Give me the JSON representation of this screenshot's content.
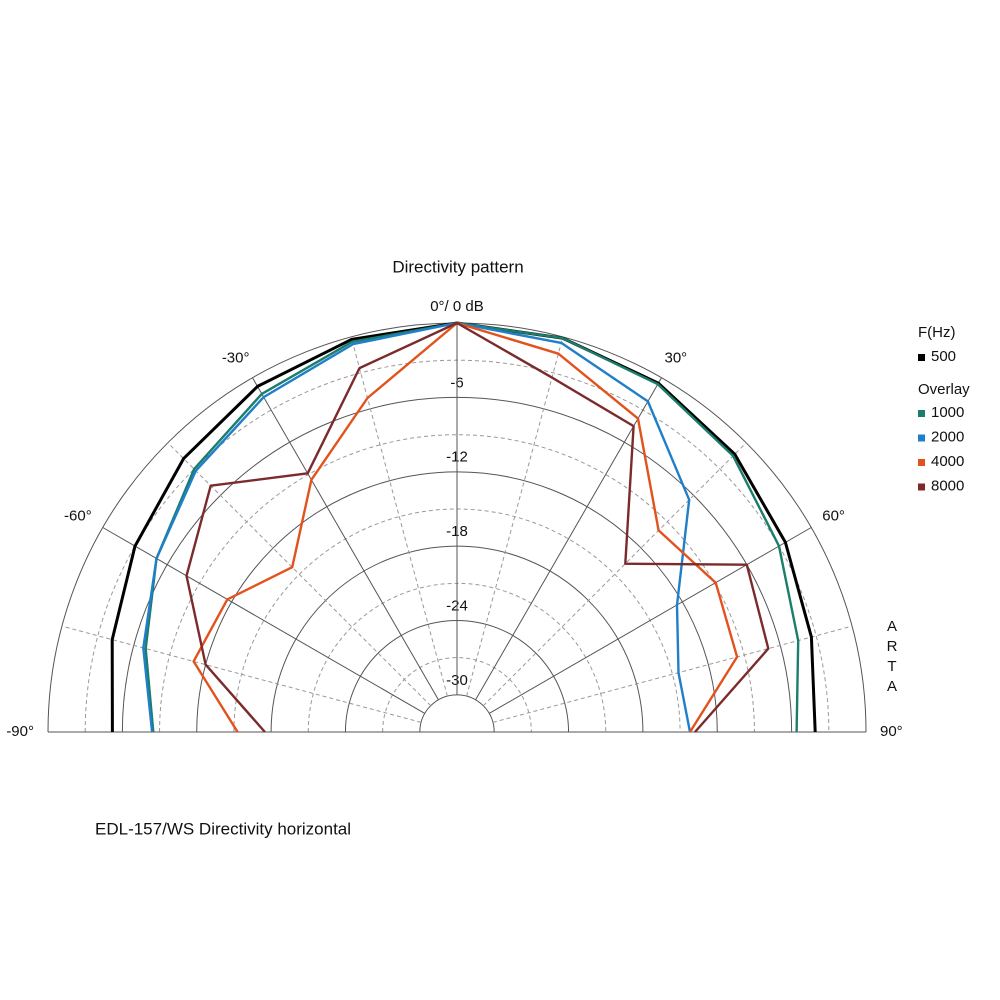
{
  "chart_data": {
    "type": "polar",
    "title": "Directivity pattern",
    "footnote": "EDL-157/WS  Directivity horizontal",
    "watermark": "ARTA",
    "legend_title": "F(Hz)",
    "overlay_title": "Overlay",
    "theta": [
      -90,
      -75,
      -60,
      -45,
      -30,
      -15,
      0,
      15,
      30,
      45,
      60,
      75,
      90
    ],
    "thetaticks": [
      {
        "value": -90,
        "label": "-90°"
      },
      {
        "value": -60,
        "label": "-60°"
      },
      {
        "value": -30,
        "label": "-30°"
      },
      {
        "value": 0,
        "label": "0°/ 0 dB"
      },
      {
        "value": 30,
        "label": "30°"
      },
      {
        "value": 60,
        "label": "60°"
      },
      {
        "value": 90,
        "label": "90°"
      }
    ],
    "thetaminor": [
      -75,
      -45,
      -15,
      15,
      45,
      75
    ],
    "rlim": [
      -33,
      0
    ],
    "rticks": [
      -6,
      -12,
      -18,
      -24,
      -30
    ],
    "rminor": [
      -3,
      -9,
      -15,
      -21,
      -27
    ],
    "series": [
      {
        "name": "500",
        "color": "#000000",
        "values": [
          -5.2,
          -4.2,
          -3.0,
          -1.8,
          -0.8,
          -0.2,
          0,
          -0.1,
          -0.5,
          -1.3,
          -2.4,
          -3.4,
          -4.1
        ]
      },
      {
        "name": "1000",
        "color": "#1b7d6b",
        "values": [
          -8.5,
          -7.0,
          -5.0,
          -3.0,
          -1.5,
          -0.4,
          0,
          -0.1,
          -0.6,
          -1.5,
          -3.0,
          -4.5,
          -5.6
        ]
      },
      {
        "name": "2000",
        "color": "#1f7fc8",
        "values": [
          -8.4,
          -6.8,
          -5.0,
          -3.2,
          -1.8,
          -0.6,
          0,
          -0.5,
          -2.2,
          -6.5,
          -12.5,
          -14.5,
          -14.2
        ]
      },
      {
        "name": "4000",
        "color": "#e2521c",
        "values": [
          -15.3,
          -11.0,
          -11.6,
          -14.2,
          -9.5,
          -5.1,
          0,
          -1.4,
          -3.8,
          -10.0,
          -8.9,
          -9.6,
          -14.2
        ]
      },
      {
        "name": "8000",
        "color": "#7b2b2b",
        "values": [
          -17.5,
          -12.0,
          -7.8,
          -4.9,
          -8.9,
          -2.6,
          0,
          -3.4,
          -4.5,
          -13.8,
          -6.0,
          -7.0,
          -13.8
        ]
      }
    ]
  }
}
